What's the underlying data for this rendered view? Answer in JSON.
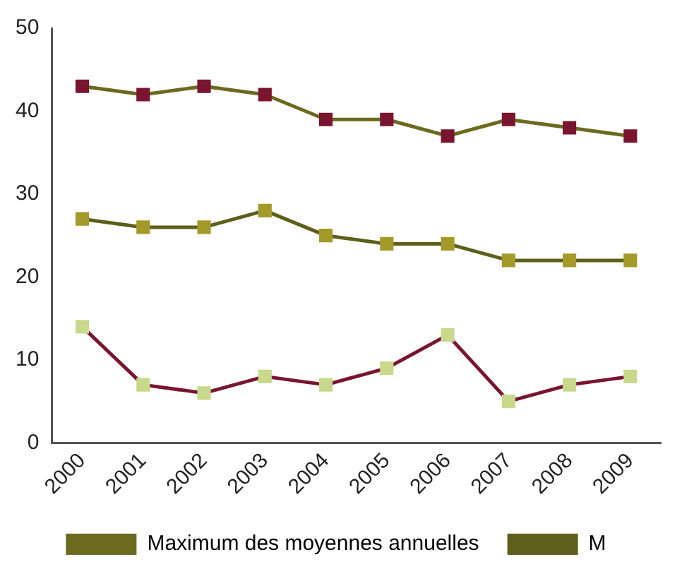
{
  "chart_data": {
    "type": "line",
    "categories": [
      "2000",
      "2001",
      "2002",
      "2003",
      "2004",
      "2005",
      "2006",
      "2007",
      "2008",
      "2009"
    ],
    "series": [
      {
        "name": "Maximum des moyennes annuelles",
        "color": "#6b6a1f",
        "colors": [
          "#7a1530",
          "#7a1530",
          "#7a1530",
          "#7a1530",
          "#7a1530",
          "#7a1530",
          "#7a1530",
          "#7a1530",
          "#7a1530",
          "#7a1530"
        ],
        "values": [
          43,
          42,
          43,
          42,
          39,
          39,
          37,
          39,
          38,
          37
        ]
      },
      {
        "name": "M",
        "color": "#5f5e1a",
        "colors": [
          "#a39a2a",
          "#a39a2a",
          "#a39a2a",
          "#a39a2a",
          "#a39a2a",
          "#a39a2a",
          "#a39a2a",
          "#a39a2a",
          "#a39a2a",
          "#a39a2a"
        ],
        "values": [
          27,
          26,
          26,
          28,
          25,
          24,
          24,
          22,
          22,
          22
        ]
      },
      {
        "color": "#7a1530",
        "colors": [
          "#c9d98c",
          "#c9d98c",
          "#c9d98c",
          "#c9d98c",
          "#c9d98c",
          "#c9d98c",
          "#c9d98c",
          "#c9d98c",
          "#c9d98c",
          "#c9d98c"
        ],
        "values": [
          14,
          7,
          6,
          8,
          7,
          9,
          13,
          5,
          7,
          8
        ]
      }
    ],
    "ylim": [
      0,
      50
    ],
    "yticks": [
      0,
      10,
      20,
      30,
      40,
      50
    ],
    "grid": false,
    "legend": "bottom",
    "marker": "square",
    "line_style": "solid"
  }
}
